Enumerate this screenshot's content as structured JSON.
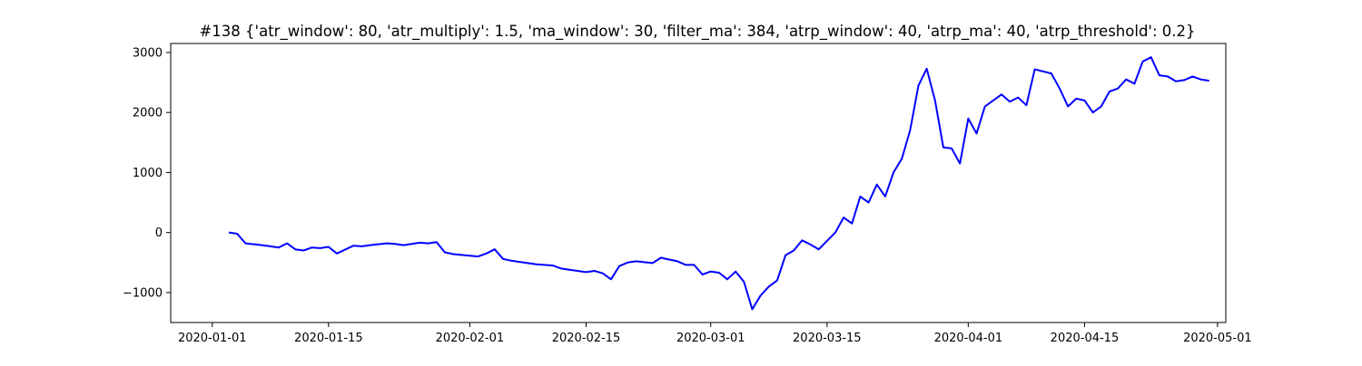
{
  "chart_data": {
    "type": "line",
    "title": "#138 {'atr_window': 80, 'atr_multiply': 1.5, 'ma_window': 30, 'filter_ma': 384, 'atrp_window': 40, 'atrp_ma': 40, 'atrp_threshold': 0.2}",
    "xlabel": "",
    "ylabel": "",
    "xlim": [
      "2019-12-27",
      "2020-05-02"
    ],
    "ylim": [
      -1500,
      3150
    ],
    "x_ticks": [
      "2020-01-01",
      "2020-01-15",
      "2020-02-01",
      "2020-02-15",
      "2020-03-01",
      "2020-03-15",
      "2020-04-01",
      "2020-04-15",
      "2020-05-01"
    ],
    "y_ticks": [
      -1000,
      0,
      1000,
      2000,
      3000
    ],
    "y_tick_labels": [
      "−1000",
      "0",
      "1000",
      "2000",
      "3000"
    ],
    "grid": false,
    "legend": "none",
    "series_color": "#0000ff",
    "series": [
      {
        "x": [
          "2020-01-03",
          "2020-01-04",
          "2020-01-05",
          "2020-01-07",
          "2020-01-08",
          "2020-01-09",
          "2020-01-10",
          "2020-01-11",
          "2020-01-12",
          "2020-01-13",
          "2020-01-14",
          "2020-01-15",
          "2020-01-16",
          "2020-01-18",
          "2020-01-19",
          "2020-01-20",
          "2020-01-22",
          "2020-01-23",
          "2020-01-24",
          "2020-01-26",
          "2020-01-27",
          "2020-01-28",
          "2020-01-29",
          "2020-01-30",
          "2020-02-02",
          "2020-02-03",
          "2020-02-04",
          "2020-02-05",
          "2020-02-06",
          "2020-02-07",
          "2020-02-09",
          "2020-02-10",
          "2020-02-11",
          "2020-02-12",
          "2020-02-13",
          "2020-02-15",
          "2020-02-16",
          "2020-02-17",
          "2020-02-18",
          "2020-02-19",
          "2020-02-20",
          "2020-02-21",
          "2020-02-23",
          "2020-02-24",
          "2020-02-25",
          "2020-02-26",
          "2020-02-27",
          "2020-02-28",
          "2020-02-29",
          "2020-03-01",
          "2020-03-02",
          "2020-03-03",
          "2020-03-04",
          "2020-03-05",
          "2020-03-06",
          "2020-03-07",
          "2020-03-08",
          "2020-03-09",
          "2020-03-10",
          "2020-03-11",
          "2020-03-12",
          "2020-03-13",
          "2020-03-14",
          "2020-03-16",
          "2020-03-17",
          "2020-03-18",
          "2020-03-19",
          "2020-03-20",
          "2020-03-21",
          "2020-03-22",
          "2020-03-23",
          "2020-03-24",
          "2020-03-25",
          "2020-03-26",
          "2020-03-27",
          "2020-03-28",
          "2020-03-29",
          "2020-03-30",
          "2020-03-31",
          "2020-04-01",
          "2020-04-02",
          "2020-04-03",
          "2020-04-04",
          "2020-04-05",
          "2020-04-06",
          "2020-04-07",
          "2020-04-08",
          "2020-04-09",
          "2020-04-11",
          "2020-04-12",
          "2020-04-13",
          "2020-04-14",
          "2020-04-15",
          "2020-04-16",
          "2020-04-17",
          "2020-04-18",
          "2020-04-19",
          "2020-04-20",
          "2020-04-21",
          "2020-04-22",
          "2020-04-23",
          "2020-04-24",
          "2020-04-25",
          "2020-04-26",
          "2020-04-27",
          "2020-04-28",
          "2020-04-29",
          "2020-04-30"
        ],
        "y": [
          0,
          -20,
          -180,
          -210,
          -230,
          -250,
          -180,
          -280,
          -300,
          -250,
          -260,
          -240,
          -350,
          -220,
          -230,
          -210,
          -180,
          -190,
          -210,
          -170,
          -180,
          -160,
          -330,
          -360,
          -400,
          -350,
          -280,
          -440,
          -470,
          -490,
          -530,
          -540,
          -550,
          -600,
          -620,
          -660,
          -640,
          -680,
          -780,
          -560,
          -500,
          -480,
          -510,
          -420,
          -450,
          -480,
          -540,
          -540,
          -700,
          -650,
          -670,
          -780,
          -650,
          -820,
          -1280,
          -1050,
          -900,
          -800,
          -380,
          -300,
          -130,
          -200,
          -280,
          0,
          250,
          150,
          600,
          500,
          800,
          600,
          1000,
          1230,
          1700,
          2450,
          2730,
          2200,
          1420,
          1400,
          1150,
          1900,
          1650,
          2100,
          2200,
          2300,
          2180,
          2250,
          2120,
          2720,
          2650,
          2400,
          2100,
          2230,
          2200,
          2000,
          2100,
          2350,
          2400,
          2550,
          2480,
          2850,
          2920,
          2620,
          2600,
          2520,
          2540,
          2600,
          2550,
          2530
        ]
      }
    ]
  }
}
